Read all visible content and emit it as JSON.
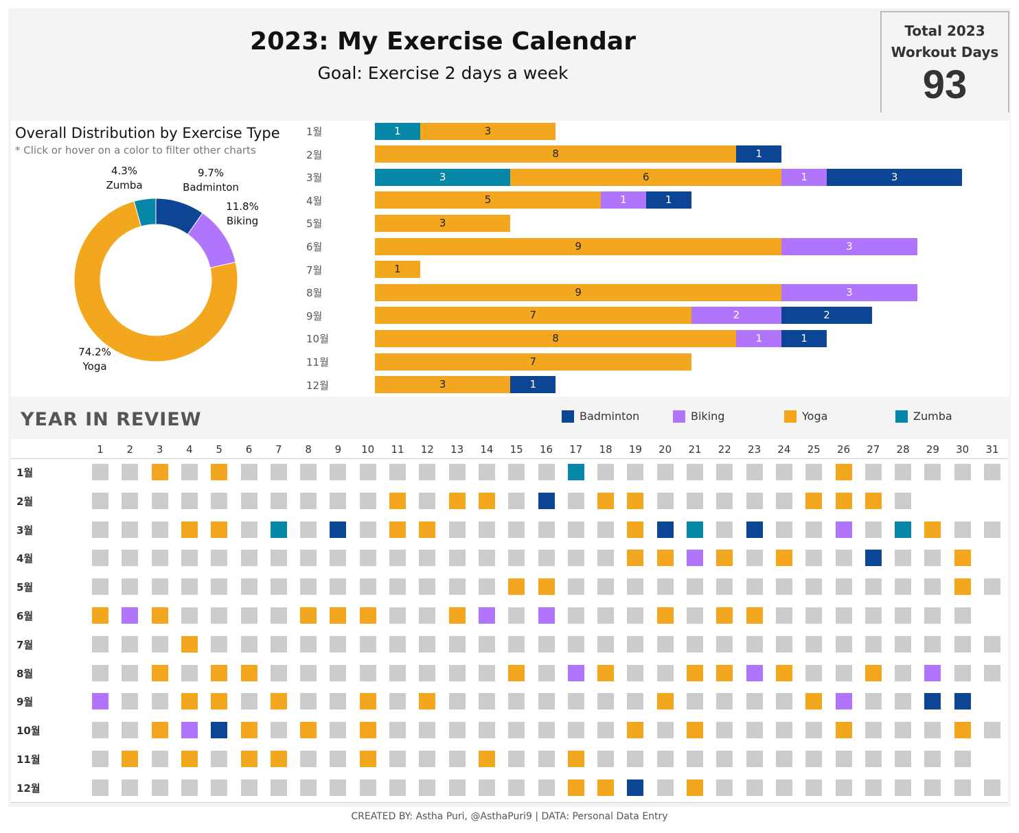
{
  "header": {
    "title": "2023: My Exercise Calendar",
    "subtitle": "Goal: Exercise 2 days a week"
  },
  "kpi": {
    "label_line1": "Total 2023",
    "label_line2": "Workout Days",
    "value": "93"
  },
  "colors": {
    "Yoga": "#f2a71e",
    "Biking": "#b075fb",
    "Badminton": "#0d4595",
    "Zumba": "#0687a8",
    "none": "#cccccc"
  },
  "chart_data": [
    {
      "type": "pie",
      "title": "Overall Distribution by Exercise Type",
      "note": "* Click or hover on a color to filter other charts",
      "slices": [
        {
          "name": "Badminton",
          "pct": "9.7%",
          "value": 9.7
        },
        {
          "name": "Biking",
          "pct": "11.8%",
          "value": 11.8
        },
        {
          "name": "Yoga",
          "pct": "74.2%",
          "value": 74.2
        },
        {
          "name": "Zumba",
          "pct": "4.3%",
          "value": 4.3
        }
      ]
    },
    {
      "type": "bar",
      "stacked": true,
      "orientation": "horizontal",
      "categories": [
        "1월",
        "2월",
        "3월",
        "4월",
        "5월",
        "6월",
        "7월",
        "8월",
        "9월",
        "10월",
        "11월",
        "12월"
      ],
      "series_order": [
        "Zumba",
        "Yoga",
        "Biking",
        "Badminton"
      ],
      "series": [
        {
          "name": "Zumba",
          "values": [
            1,
            0,
            3,
            0,
            0,
            0,
            0,
            0,
            0,
            0,
            0,
            0
          ]
        },
        {
          "name": "Yoga",
          "values": [
            3,
            8,
            6,
            5,
            3,
            9,
            1,
            9,
            7,
            8,
            7,
            3
          ]
        },
        {
          "name": "Biking",
          "values": [
            0,
            0,
            1,
            1,
            0,
            3,
            0,
            3,
            2,
            1,
            0,
            0
          ]
        },
        {
          "name": "Badminton",
          "values": [
            0,
            1,
            3,
            1,
            0,
            0,
            0,
            0,
            2,
            1,
            0,
            1
          ]
        }
      ]
    },
    {
      "type": "heatmap",
      "title": "YEAR IN REVIEW",
      "legend": [
        "Badminton",
        "Biking",
        "Yoga",
        "Zumba"
      ],
      "days": [
        "1",
        "2",
        "3",
        "4",
        "5",
        "6",
        "7",
        "8",
        "9",
        "10",
        "11",
        "12",
        "13",
        "14",
        "15",
        "16",
        "17",
        "18",
        "19",
        "20",
        "21",
        "22",
        "23",
        "24",
        "25",
        "26",
        "27",
        "28",
        "29",
        "30",
        "31"
      ],
      "months": [
        {
          "label": "1월",
          "length": 31,
          "workouts": {
            "3": "Yoga",
            "5": "Yoga",
            "17": "Zumba",
            "26": "Yoga"
          }
        },
        {
          "label": "2월",
          "length": 28,
          "workouts": {
            "11": "Yoga",
            "13": "Yoga",
            "14": "Yoga",
            "16": "Badminton",
            "18": "Yoga",
            "19": "Yoga",
            "25": "Yoga",
            "26": "Yoga",
            "27": "Yoga"
          }
        },
        {
          "label": "3월",
          "length": 31,
          "workouts": {
            "4": "Yoga",
            "5": "Yoga",
            "7": "Zumba",
            "9": "Badminton",
            "11": "Yoga",
            "12": "Yoga",
            "19": "Yoga",
            "20": "Badminton",
            "21": "Zumba",
            "23": "Badminton",
            "26": "Biking",
            "28": "Zumba",
            "29": "Yoga"
          }
        },
        {
          "label": "4월",
          "length": 30,
          "workouts": {
            "19": "Yoga",
            "20": "Yoga",
            "21": "Biking",
            "22": "Yoga",
            "24": "Yoga",
            "27": "Badminton",
            "30": "Yoga"
          }
        },
        {
          "label": "5월",
          "length": 31,
          "workouts": {
            "15": "Yoga",
            "16": "Yoga",
            "30": "Yoga"
          }
        },
        {
          "label": "6월",
          "length": 30,
          "workouts": {
            "1": "Yoga",
            "2": "Biking",
            "3": "Yoga",
            "8": "Yoga",
            "9": "Yoga",
            "10": "Yoga",
            "13": "Yoga",
            "14": "Biking",
            "16": "Biking",
            "20": "Yoga",
            "22": "Yoga",
            "23": "Yoga"
          }
        },
        {
          "label": "7월",
          "length": 31,
          "workouts": {
            "4": "Yoga"
          }
        },
        {
          "label": "8월",
          "length": 31,
          "workouts": {
            "3": "Yoga",
            "5": "Yoga",
            "6": "Yoga",
            "15": "Yoga",
            "17": "Biking",
            "18": "Yoga",
            "21": "Yoga",
            "22": "Yoga",
            "23": "Biking",
            "24": "Yoga",
            "27": "Yoga",
            "29": "Biking"
          }
        },
        {
          "label": "9월",
          "length": 30,
          "workouts": {
            "1": "Biking",
            "4": "Yoga",
            "5": "Yoga",
            "7": "Yoga",
            "10": "Yoga",
            "12": "Yoga",
            "20": "Yoga",
            "25": "Yoga",
            "26": "Biking",
            "29": "Badminton",
            "30": "Badminton"
          }
        },
        {
          "label": "10월",
          "length": 31,
          "workouts": {
            "3": "Yoga",
            "4": "Biking",
            "5": "Badminton",
            "6": "Yoga",
            "8": "Yoga",
            "10": "Yoga",
            "19": "Yoga",
            "21": "Yoga",
            "26": "Yoga",
            "30": "Yoga"
          }
        },
        {
          "label": "11월",
          "length": 30,
          "workouts": {
            "2": "Yoga",
            "4": "Yoga",
            "6": "Yoga",
            "7": "Yoga",
            "10": "Yoga",
            "14": "Yoga",
            "17": "Yoga"
          }
        },
        {
          "label": "12월",
          "length": 31,
          "workouts": {
            "17": "Yoga",
            "18": "Yoga",
            "19": "Badminton",
            "21": "Yoga"
          }
        }
      ]
    }
  ],
  "footer": "CREATED BY: Astha Puri, @AsthaPuri9 | DATA: Personal Data Entry"
}
